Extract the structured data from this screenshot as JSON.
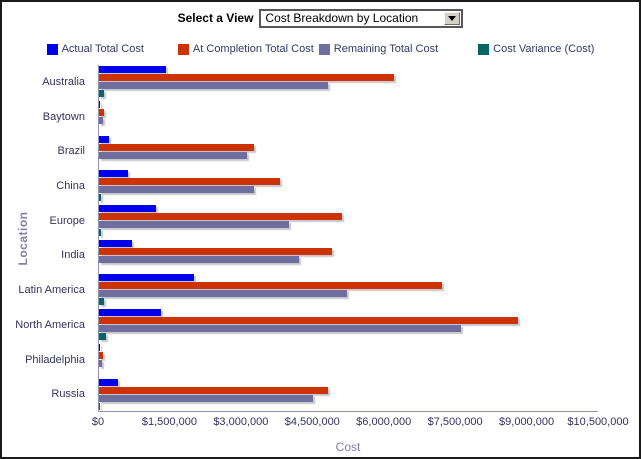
{
  "header": {
    "label": "Select a View",
    "dropdown_value": "Cost Breakdown by Location"
  },
  "chart_data": {
    "type": "bar",
    "orientation": "horizontal",
    "title": "",
    "xlabel": "Cost",
    "ylabel": "Location",
    "xlim": [
      0,
      10500000
    ],
    "x_tick_labels": [
      "$0",
      "$1,500,000",
      "$3,000,000",
      "$4,500,000",
      "$6,000,000",
      "$7,500,000",
      "$9,000,000",
      "$10,500,000"
    ],
    "grid": false,
    "legend_position": "top",
    "categories": [
      "Australia",
      "Baytown",
      "Brazil",
      "China",
      "Europe",
      "India",
      "Latin America",
      "North America",
      "Philadelphia",
      "Russia"
    ],
    "series": [
      {
        "name": "Actual Total Cost",
        "color": "#0000ee",
        "values": [
          1400000,
          20000,
          200000,
          600000,
          1200000,
          700000,
          2000000,
          1300000,
          20000,
          400000
        ]
      },
      {
        "name": "At Completion Total Cost",
        "color": "#cc3300",
        "values": [
          6200000,
          100000,
          3250000,
          3800000,
          5100000,
          4900000,
          7200000,
          8800000,
          80000,
          4800000
        ]
      },
      {
        "name": "Remaining Total Cost",
        "color": "#6f6f9f",
        "values": [
          4800000,
          80000,
          3100000,
          3250000,
          4000000,
          4200000,
          5200000,
          7600000,
          60000,
          4500000
        ]
      },
      {
        "name": "Cost Variance (Cost)",
        "color": "#066666",
        "values": [
          100000,
          0,
          0,
          50000,
          50000,
          0,
          100000,
          150000,
          0,
          30000
        ]
      }
    ]
  }
}
